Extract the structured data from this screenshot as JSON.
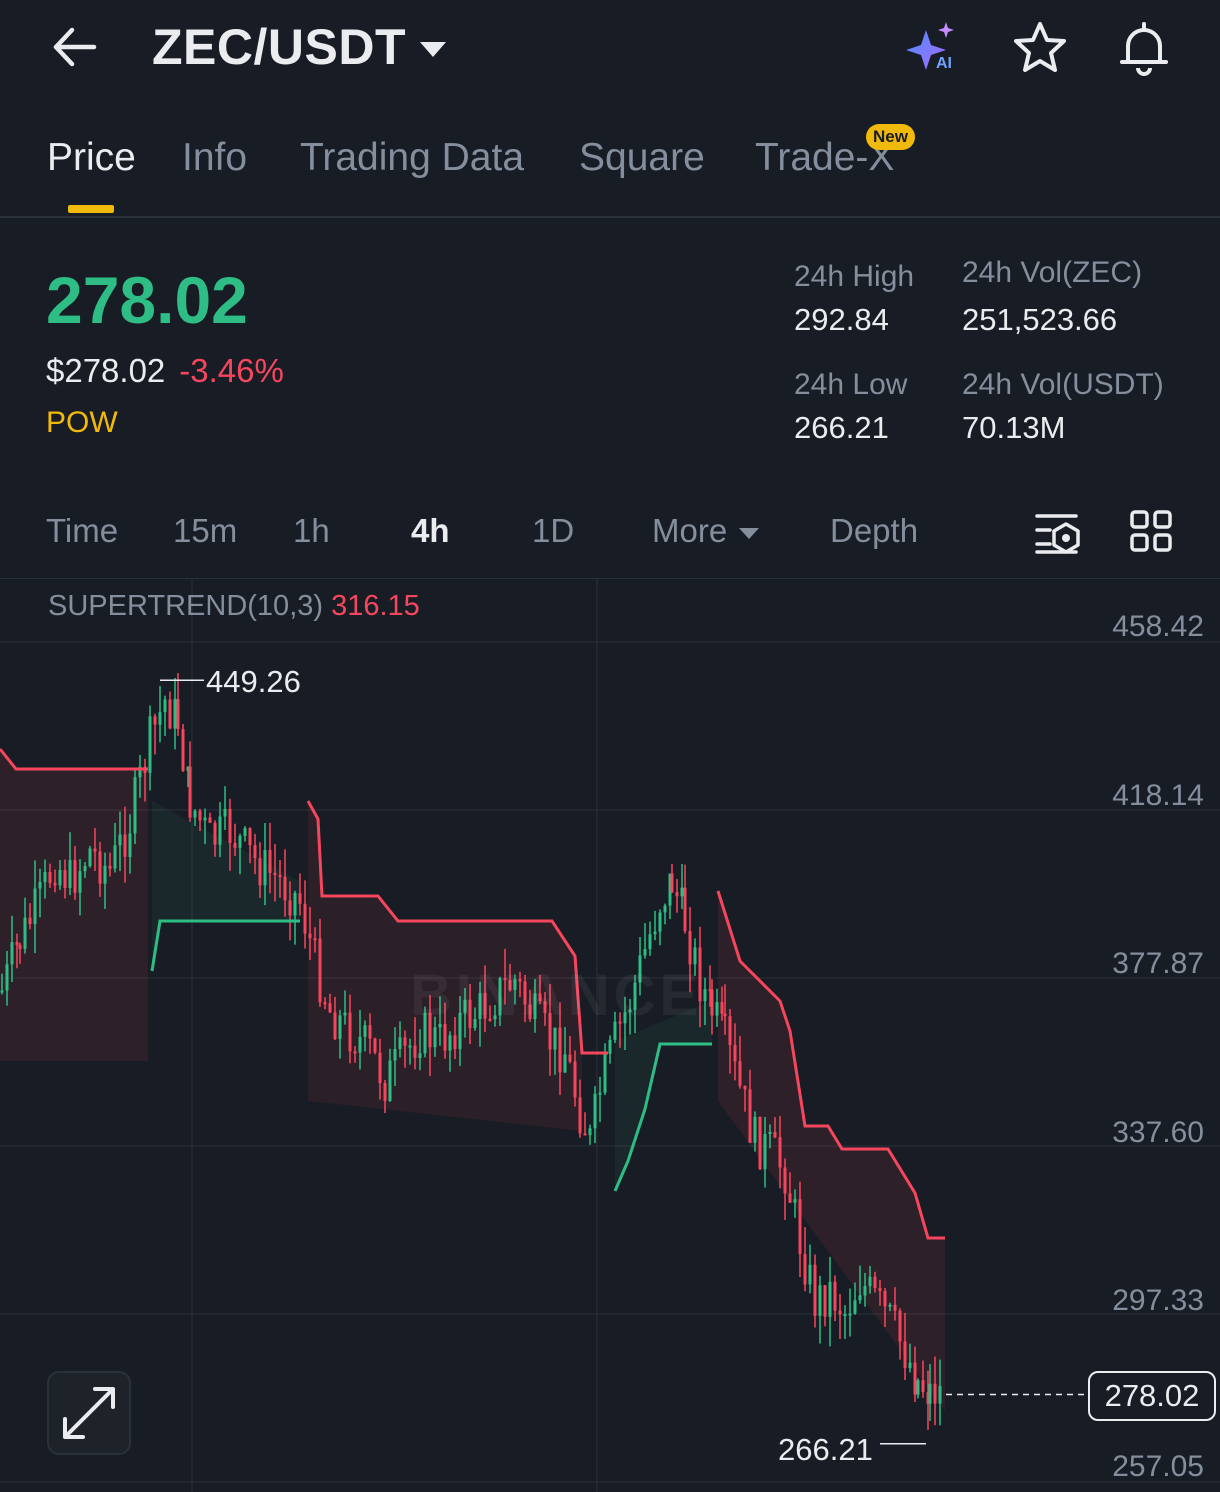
{
  "header": {
    "pair": "ZEC/USDT",
    "icons": [
      "back-arrow-icon",
      "ai-sparkle-icon",
      "star-icon",
      "bell-icon"
    ]
  },
  "tabs": [
    {
      "label": "Price",
      "active": true
    },
    {
      "label": "Info"
    },
    {
      "label": "Trading Data"
    },
    {
      "label": "Square"
    },
    {
      "label": "Trade-X",
      "badge": "New"
    }
  ],
  "price": {
    "last": "278.02",
    "usd": "$278.02",
    "change": "-3.46%",
    "tag": "POW"
  },
  "stats": {
    "high_label": "24h High",
    "high": "292.84",
    "low_label": "24h Low",
    "low": "266.21",
    "vol_zec_label": "24h Vol(ZEC)",
    "vol_zec": "251,523.66",
    "vol_usdt_label": "24h Vol(USDT)",
    "vol_usdt": "70.13M"
  },
  "timeframes": {
    "time": "Time",
    "m15": "15m",
    "h1": "1h",
    "h4": "4h",
    "d1": "1D",
    "more": "More",
    "depth": "Depth",
    "active": "4h"
  },
  "chart": {
    "indicator_name": "SUPERTREND(10,3)",
    "indicator_value": "316.15",
    "y_ticks": [
      "458.42",
      "418.14",
      "377.87",
      "337.60",
      "297.33",
      "257.05"
    ],
    "high_marker": "449.26",
    "low_marker": "266.21",
    "last_price": "278.02",
    "watermark": "BINANCE"
  },
  "colors": {
    "up": "#2ebd85",
    "down": "#f6465d",
    "accent": "#f0b90b",
    "bg": "#181c24"
  }
}
